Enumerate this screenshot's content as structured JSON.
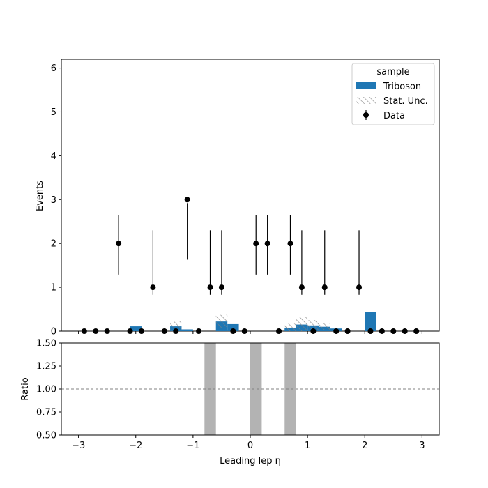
{
  "chart_data": {
    "type": "bar",
    "xlabel": "Leading lep η",
    "top": {
      "ylabel": "Events",
      "ylim": [
        0,
        6.2
      ],
      "xlim": [
        -3.3,
        3.3
      ],
      "yticks": [
        0,
        1,
        2,
        3,
        4,
        5,
        6
      ],
      "xticks": [
        -3,
        -2,
        -1,
        0,
        1,
        2,
        3
      ],
      "legend": {
        "title": "sample",
        "placement": "top-right",
        "entries": [
          "Triboson",
          "Stat. Unc.",
          "Data"
        ]
      },
      "triboson": {
        "name": "Triboson",
        "color": "#1f77b4",
        "bins": [
          {
            "x": -2.0,
            "value": 0.11,
            "unc": 0.0
          },
          {
            "x": -1.3,
            "value": 0.11,
            "unc": 0.25
          },
          {
            "x": -1.1,
            "value": 0.04,
            "unc": 0.0
          },
          {
            "x": -0.5,
            "value": 0.22,
            "unc": 0.3
          },
          {
            "x": -0.3,
            "value": 0.16,
            "unc": 0.0
          },
          {
            "x": 0.7,
            "value": 0.08,
            "unc": 0.18
          },
          {
            "x": 0.9,
            "value": 0.15,
            "unc": 0.36
          },
          {
            "x": 1.1,
            "value": 0.13,
            "unc": 0.24
          },
          {
            "x": 1.3,
            "value": 0.1,
            "unc": 0.16
          },
          {
            "x": 1.5,
            "value": 0.06,
            "unc": 0.0
          },
          {
            "x": 2.1,
            "value": 0.44,
            "unc": 0.0
          }
        ]
      },
      "data": {
        "name": "Data",
        "x": [
          -2.9,
          -2.7,
          -2.5,
          -2.3,
          -2.1,
          -1.9,
          -1.7,
          -1.5,
          -1.3,
          -1.1,
          -0.9,
          -0.7,
          -0.5,
          -0.3,
          -0.1,
          0.1,
          0.3,
          0.5,
          0.7,
          0.9,
          1.1,
          1.3,
          1.5,
          1.7,
          1.9,
          2.1,
          2.3,
          2.5,
          2.7,
          2.9
        ],
        "y": [
          0,
          0,
          0,
          2,
          0,
          0,
          1,
          0,
          0,
          3,
          0,
          1,
          1,
          0,
          0,
          2,
          2,
          0,
          2,
          1,
          0,
          1,
          0,
          0,
          1,
          0,
          0,
          0,
          0,
          0
        ],
        "err_low": [
          0,
          0,
          0,
          1.29,
          0,
          0,
          0.83,
          0,
          0,
          1.63,
          0,
          0.83,
          0.83,
          0,
          0,
          1.29,
          1.29,
          0,
          1.29,
          0.83,
          0,
          0.83,
          0,
          0,
          0.83,
          0,
          0,
          0,
          0,
          0
        ],
        "err_high": [
          0,
          0,
          0,
          2.64,
          0,
          0,
          2.3,
          0,
          0,
          2.92,
          0,
          2.3,
          2.3,
          0,
          0,
          2.64,
          2.64,
          0,
          2.64,
          2.3,
          0,
          2.3,
          0,
          0,
          2.3,
          0,
          0,
          0,
          0,
          0
        ]
      }
    },
    "ratio": {
      "ylabel": "Ratio",
      "ylim": [
        0.5,
        1.5
      ],
      "yticks": [
        "0.50",
        "0.75",
        "1.00",
        "1.25",
        "1.50"
      ],
      "reference": 1.0,
      "unc_bands": [
        {
          "x0": -0.8,
          "x1": -0.6
        },
        {
          "x0": 0.0,
          "x1": 0.2
        },
        {
          "x0": 0.6,
          "x1": 0.8
        }
      ],
      "band_color": "#b3b3b3"
    }
  }
}
